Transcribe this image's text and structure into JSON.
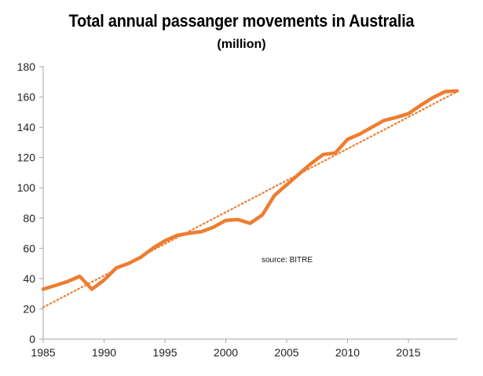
{
  "chart_data": {
    "type": "line",
    "title": "Total annual passanger movements in Australia",
    "subtitle": "(million)",
    "xlabel": "",
    "ylabel": "",
    "xlim": [
      1985,
      2019
    ],
    "ylim": [
      0,
      180
    ],
    "x_ticks": [
      1985,
      1990,
      1995,
      2000,
      2005,
      2010,
      2015
    ],
    "y_ticks": [
      0,
      20,
      40,
      60,
      80,
      100,
      120,
      140,
      160,
      180
    ],
    "grid": false,
    "legend": "none",
    "annotation": "source:  BITRE",
    "colors": {
      "series": "#ED7D31",
      "axis": "#a6a6a6",
      "background": "#ffffff"
    },
    "x": [
      1985,
      1986,
      1987,
      1988,
      1989,
      1990,
      1991,
      1992,
      1993,
      1994,
      1995,
      1996,
      1997,
      1998,
      1999,
      2000,
      2001,
      2002,
      2003,
      2004,
      2005,
      2006,
      2007,
      2008,
      2009,
      2010,
      2011,
      2012,
      2013,
      2014,
      2015,
      2016,
      2017,
      2018,
      2019
    ],
    "series": [
      {
        "values": [
          33,
          35.5,
          38,
          41.5,
          33,
          39,
          47,
          50,
          54,
          60,
          65,
          68.5,
          70,
          71,
          74,
          78.5,
          79,
          76.5,
          82,
          95,
          102,
          109,
          116,
          122,
          123,
          132,
          135.5,
          140,
          144.5,
          146.5,
          149,
          154.5,
          159.5,
          163.5,
          164
        ],
        "style": "solid"
      },
      {
        "type": "trendline",
        "style": "dotted",
        "endpoints": [
          [
            1985,
            21
          ],
          [
            2019,
            163.5
          ]
        ]
      }
    ]
  }
}
